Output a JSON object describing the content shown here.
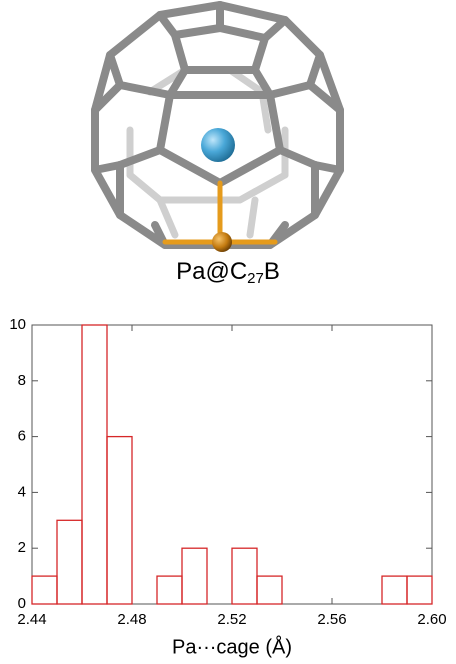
{
  "chart_data": {
    "type": "histogram",
    "title": [
      "Pa@C",
      "27",
      "B"
    ],
    "x_label": "Pa···cage (Å)",
    "bins": [
      2.44,
      2.45,
      2.46,
      2.47,
      2.48,
      2.49,
      2.5,
      2.51,
      2.52,
      2.53,
      2.54,
      2.55,
      2.56,
      2.57,
      2.58,
      2.59,
      2.6
    ],
    "values": [
      1,
      3,
      10,
      6,
      0,
      1,
      2,
      0,
      2,
      1,
      0,
      0,
      0,
      0,
      1,
      1
    ],
    "color": "#d62728",
    "xlim": [
      2.44,
      2.6
    ],
    "xticks": [
      2.44,
      2.48,
      2.52,
      2.56,
      {
        "value": 2.6,
        "label": "2.60"
      }
    ],
    "ylim": [
      0,
      10
    ],
    "yticks": [
      0,
      2,
      4,
      6,
      8,
      10
    ]
  }
}
